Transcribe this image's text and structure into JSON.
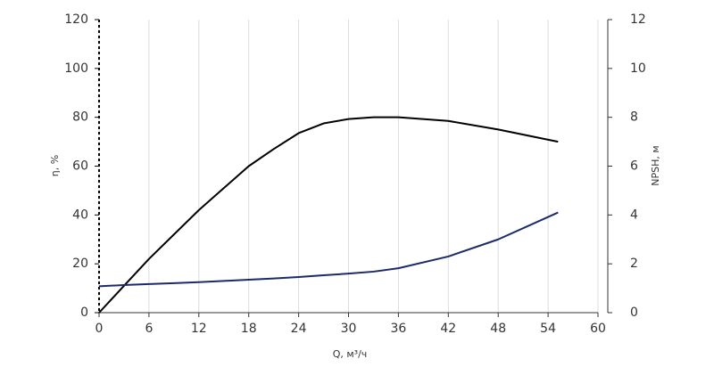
{
  "chart_data": {
    "type": "line",
    "x_label": "Q, м³/ч",
    "y_label": "η, %",
    "y2_label": "NPSH, м",
    "x": [
      0,
      3,
      6,
      9,
      12,
      15,
      18,
      21,
      24,
      27,
      30,
      33,
      36,
      42,
      48,
      55.2
    ],
    "series": [
      {
        "color": "#000000",
        "values": [
          0,
          11,
          22,
          32,
          42,
          51,
          60,
          67,
          73.5,
          77.5,
          79.3,
          80,
          80,
          78.5,
          75,
          70
        ]
      },
      {
        "color": "#1c2a6b",
        "axis": "y2",
        "values": [
          1.08,
          1.13,
          1.17,
          1.21,
          1.25,
          1.3,
          1.35,
          1.4,
          1.46,
          1.53,
          1.6,
          1.68,
          1.82,
          2.3,
          3.0,
          4.1
        ]
      }
    ],
    "xlim": [
      0,
      60
    ],
    "xticks": [
      0,
      6,
      12,
      18,
      24,
      30,
      36,
      42,
      48,
      54,
      60
    ],
    "ylim": [
      0,
      120
    ],
    "yticks": [
      0,
      20,
      40,
      60,
      80,
      100,
      120
    ],
    "y2lim": [
      0,
      12
    ],
    "y2ticks": [
      0,
      2,
      4,
      6,
      8,
      10,
      12
    ],
    "grid": true
  }
}
